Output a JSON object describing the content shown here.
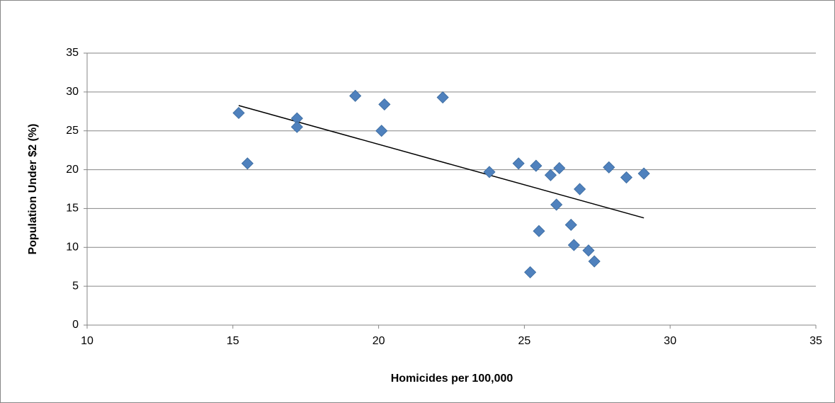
{
  "chart_data": {
    "type": "scatter",
    "x_label": "Homicides per 100,000",
    "y_label": "Population Under $2 (%)",
    "x": [
      15.2,
      15.5,
      17.2,
      17.2,
      19.2,
      20.1,
      20.2,
      22.2,
      23.8,
      24.8,
      25.4,
      26.2,
      25.9,
      26.9,
      27.9,
      28.5,
      29.1,
      26.1,
      25.5,
      26.6,
      26.7,
      27.2,
      27.4,
      25.2
    ],
    "values": [
      27.3,
      20.8,
      26.6,
      25.5,
      29.5,
      25.0,
      28.4,
      29.3,
      19.7,
      20.8,
      20.5,
      20.2,
      19.3,
      17.5,
      20.3,
      19.0,
      19.5,
      15.5,
      12.1,
      12.9,
      10.3,
      9.6,
      8.2,
      6.8
    ],
    "color": "#4f81bd",
    "trendline": "linear",
    "xlim": [
      10,
      35
    ],
    "xticks": [
      10,
      15,
      20,
      25,
      30,
      35
    ],
    "ylim": [
      0,
      35
    ],
    "yticks": [
      0,
      5,
      10,
      15,
      20,
      25,
      30,
      35
    ],
    "grid": true
  }
}
